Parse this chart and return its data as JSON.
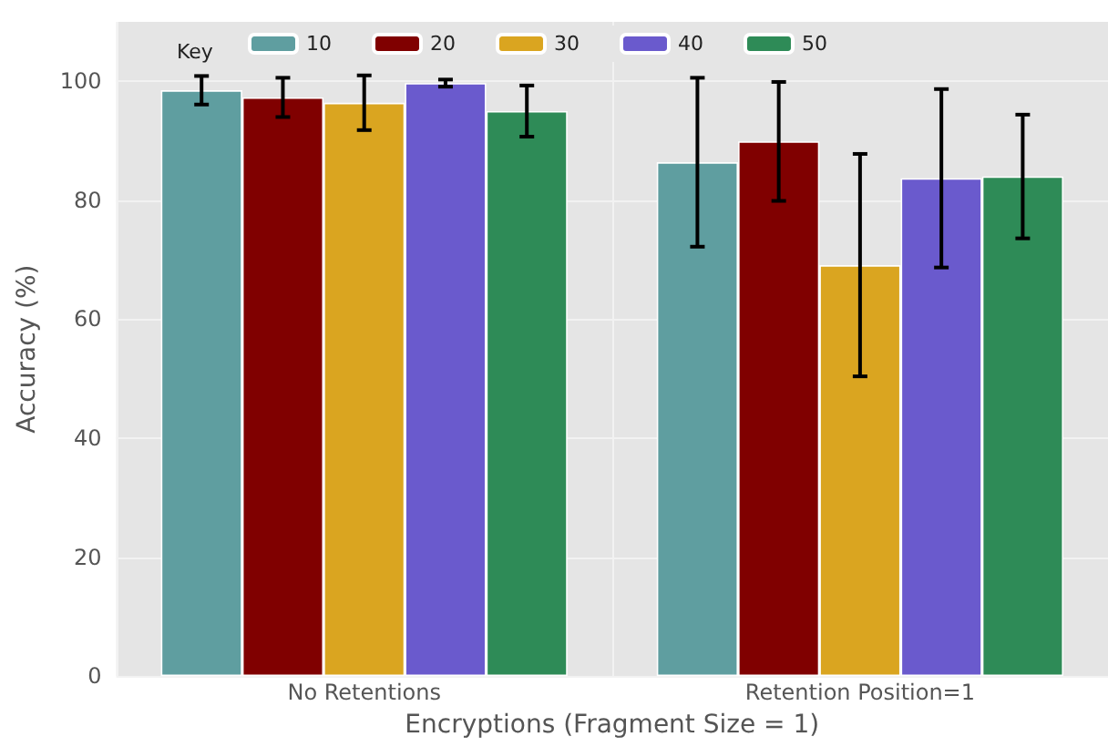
{
  "chart_data": {
    "type": "bar",
    "xlabel": "Encryptions (Fragment Size = 1)",
    "ylabel": "Accuracy (%)",
    "legend_title": "Key",
    "categories": [
      "No Retentions",
      "Retention Position=1"
    ],
    "series": [
      {
        "name": "10",
        "color": "#5f9ea0",
        "values": [
          98.5,
          86.4
        ],
        "errors": [
          2.4,
          14.2
        ]
      },
      {
        "name": "20",
        "color": "#800000",
        "values": [
          97.3,
          89.9
        ],
        "errors": [
          3.3,
          10
        ]
      },
      {
        "name": "30",
        "color": "#daa520",
        "values": [
          96.4,
          69.1
        ],
        "errors": [
          4.6,
          18.7
        ]
      },
      {
        "name": "40",
        "color": "#6a5acd",
        "values": [
          99.7,
          83.7
        ],
        "errors": [
          0.6,
          15
        ]
      },
      {
        "name": "50",
        "color": "#2e8b57",
        "values": [
          95,
          84
        ],
        "errors": [
          4.3,
          10.4
        ]
      }
    ],
    "ylim": [
      0,
      110
    ],
    "yticks": [
      0,
      20,
      40,
      60,
      80,
      100
    ],
    "grid": true,
    "legend": "top left"
  }
}
